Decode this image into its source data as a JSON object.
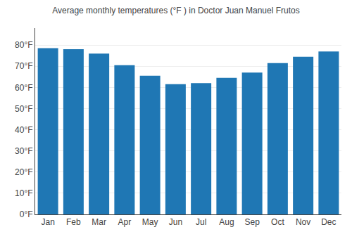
{
  "chart_data": {
    "type": "bar",
    "title": "Average monthly temperatures (°F ) in Doctor Juan Manuel Frutos",
    "categories": [
      "Jan",
      "Feb",
      "Mar",
      "Apr",
      "May",
      "Jun",
      "Jul",
      "Aug",
      "Sep",
      "Oct",
      "Nov",
      "Dec"
    ],
    "values": [
      78.5,
      78.0,
      76.0,
      70.5,
      65.5,
      61.5,
      62.0,
      64.5,
      67.0,
      71.5,
      74.5,
      77.0
    ],
    "ylim": [
      0,
      88
    ],
    "yticks": [
      {
        "value": 0,
        "label": "0°F"
      },
      {
        "value": 10,
        "label": "10°F"
      },
      {
        "value": 20,
        "label": "20°F"
      },
      {
        "value": 30,
        "label": "30°F"
      },
      {
        "value": 40,
        "label": "40°F"
      },
      {
        "value": 50,
        "label": "50°F"
      },
      {
        "value": 60,
        "label": "60°F"
      },
      {
        "value": 70,
        "label": "70°F"
      },
      {
        "value": 80,
        "label": "80°F"
      }
    ],
    "grid": true
  }
}
